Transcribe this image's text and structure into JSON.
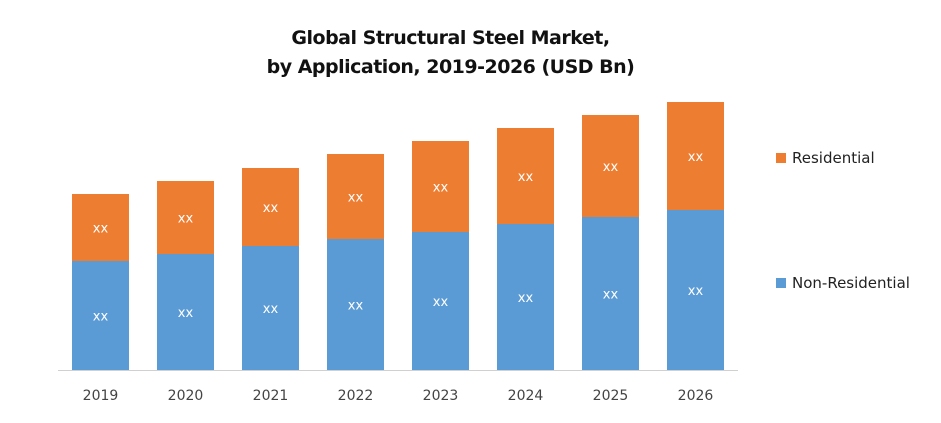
{
  "chart_data": {
    "type": "bar",
    "stacked": true,
    "title": "Global Structural Steel Market,",
    "subtitle": "by Application, 2019-2026 (USD Bn)",
    "xlabel": "",
    "ylabel": "",
    "ylim": [
      0,
      280
    ],
    "grid": false,
    "legend_position": "right",
    "categories": [
      "2019",
      "2020",
      "2021",
      "2022",
      "2023",
      "2024",
      "2025",
      "2026"
    ],
    "series": [
      {
        "name": "Non-Residential",
        "color": "#5B9BD5",
        "values": [
          109,
          116,
          124,
          131,
          138,
          146,
          153,
          160
        ],
        "labels": [
          "xx",
          "xx",
          "xx",
          "xx",
          "xx",
          "xx",
          "xx",
          "xx"
        ]
      },
      {
        "name": "Residential",
        "color": "#ED7D31",
        "values": [
          67,
          73,
          78,
          85,
          91,
          96,
          102,
          108
        ],
        "labels": [
          "xx",
          "xx",
          "xx",
          "xx",
          "xx",
          "xx",
          "xx",
          "xx"
        ]
      }
    ],
    "legend": [
      "Residential",
      "Non-Residential"
    ]
  }
}
